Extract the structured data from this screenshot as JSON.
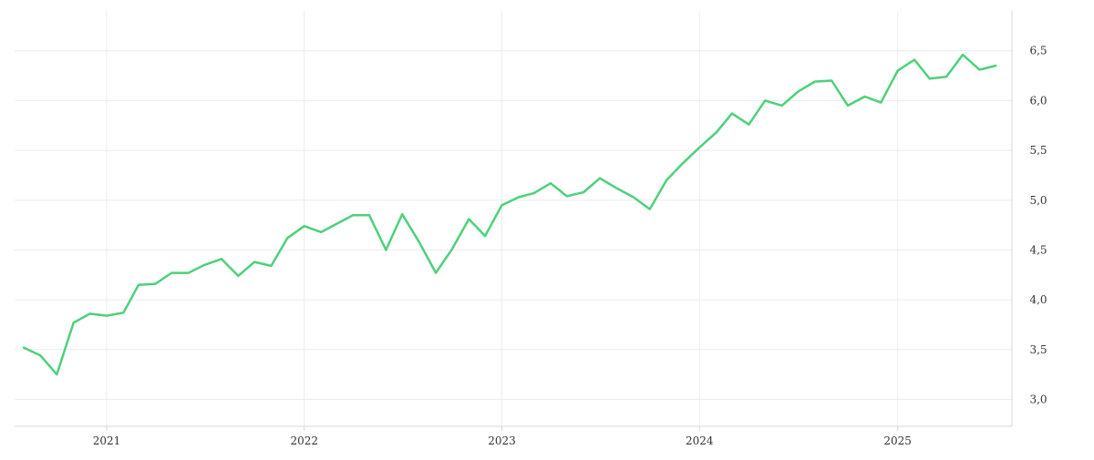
{
  "chart_data": {
    "type": "line",
    "title": "",
    "xlabel": "",
    "ylabel": "",
    "x_ticks": [
      "2021",
      "2022",
      "2023",
      "2024",
      "2025"
    ],
    "y_ticks": [
      "3,0",
      "3,5",
      "4,0",
      "4,5",
      "5,0",
      "5,5",
      "6,0",
      "6,5"
    ],
    "y_tick_values": [
      3.0,
      3.5,
      4.0,
      4.5,
      5.0,
      5.5,
      6.0,
      6.5
    ],
    "ylim": [
      2.73,
      6.9
    ],
    "xlim": [
      "2020-07-15",
      "2025-07-31"
    ],
    "grid": true,
    "y_axis_position": "right",
    "line_color": "#4cd17a",
    "grid_color": "#ececec",
    "axis_color": "#d8d8d8",
    "series": [
      {
        "x": [
          "2020-08-01",
          "2020-09-01",
          "2020-10-01",
          "2020-11-01",
          "2020-12-01",
          "2021-01-01",
          "2021-02-01",
          "2021-03-01",
          "2021-04-01",
          "2021-05-01",
          "2021-06-01",
          "2021-07-01",
          "2021-08-01",
          "2021-09-01",
          "2021-10-01",
          "2021-11-01",
          "2021-12-01",
          "2022-01-01",
          "2022-02-01",
          "2022-03-01",
          "2022-04-01",
          "2022-05-01",
          "2022-06-01",
          "2022-07-01",
          "2022-08-01",
          "2022-09-01",
          "2022-10-01",
          "2022-11-01",
          "2022-12-01",
          "2023-01-01",
          "2023-02-01",
          "2023-03-01",
          "2023-04-01",
          "2023-05-01",
          "2023-06-01",
          "2023-07-01",
          "2023-08-01",
          "2023-09-01",
          "2023-10-01",
          "2023-11-01",
          "2023-12-01",
          "2024-01-01",
          "2024-02-01",
          "2024-03-01",
          "2024-04-01",
          "2024-05-01",
          "2024-06-01",
          "2024-07-01",
          "2024-08-01",
          "2024-09-01",
          "2024-10-01",
          "2024-11-01",
          "2024-12-01",
          "2025-01-01",
          "2025-02-01",
          "2025-03-01",
          "2025-04-01",
          "2025-05-01",
          "2025-06-01",
          "2025-07-01"
        ],
        "values": [
          3.52,
          3.44,
          3.25,
          3.77,
          3.86,
          3.84,
          3.87,
          4.15,
          4.16,
          4.27,
          4.27,
          4.35,
          4.41,
          4.24,
          4.38,
          4.34,
          4.62,
          4.74,
          4.68,
          4.76,
          4.85,
          4.85,
          4.5,
          4.86,
          4.58,
          4.27,
          4.51,
          4.81,
          4.64,
          4.95,
          5.03,
          5.07,
          5.17,
          5.04,
          5.08,
          5.22,
          5.12,
          5.03,
          4.91,
          5.2,
          5.37,
          5.53,
          5.68,
          5.87,
          5.76,
          6.0,
          5.95,
          6.09,
          6.19,
          6.2,
          5.95,
          6.04,
          5.98,
          6.3,
          6.41,
          6.22,
          6.24,
          6.46,
          6.31,
          6.35
        ]
      }
    ]
  }
}
